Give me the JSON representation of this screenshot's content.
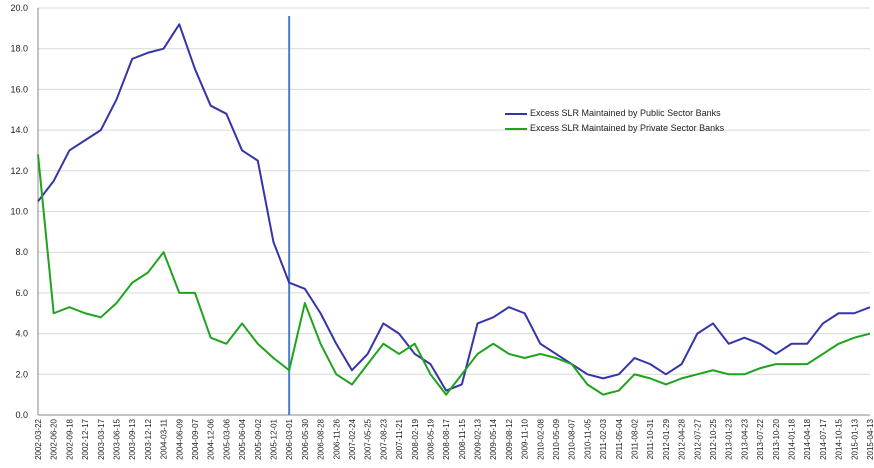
{
  "chart_data": {
    "type": "line",
    "categories": [
      "2002-03-22",
      "2002-06-20",
      "2002-09-18",
      "2002-12-17",
      "2003-03-17",
      "2003-06-15",
      "2003-09-13",
      "2003-12-12",
      "2004-03-11",
      "2004-06-09",
      "2004-09-07",
      "2004-12-06",
      "2005-03-06",
      "2005-06-04",
      "2005-09-02",
      "2005-12-01",
      "2006-03-01",
      "2006-05-30",
      "2006-08-28",
      "2006-11-26",
      "2007-02-24",
      "2007-05-25",
      "2007-08-23",
      "2007-11-21",
      "2008-02-19",
      "2008-05-19",
      "2008-08-17",
      "2008-11-15",
      "2009-02-13",
      "2009-05-14",
      "2009-08-12",
      "2009-11-10",
      "2010-02-08",
      "2010-05-09",
      "2010-08-07",
      "2010-11-05",
      "2011-02-03",
      "2011-05-04",
      "2011-08-02",
      "2011-10-31",
      "2012-01-29",
      "2012-04-28",
      "2012-07-27",
      "2012-10-25",
      "2013-01-23",
      "2013-04-23",
      "2013-07-22",
      "2013-10-20",
      "2014-01-18",
      "2014-04-18",
      "2014-07-17",
      "2014-10-15",
      "2015-01-13",
      "2015-04-13"
    ],
    "series": [
      {
        "name": "Excess SLR Maintained by Public Sector Banks",
        "color": "#3535a8",
        "values": [
          10.5,
          11.5,
          13.0,
          13.5,
          14.0,
          15.5,
          17.5,
          17.8,
          18.0,
          19.2,
          17.0,
          15.2,
          14.8,
          13.0,
          12.5,
          8.5,
          6.5,
          6.2,
          5.0,
          3.5,
          2.2,
          3.0,
          4.5,
          4.0,
          3.0,
          2.5,
          1.2,
          1.5,
          4.5,
          4.8,
          5.3,
          5.0,
          3.5,
          3.0,
          2.5,
          2.0,
          1.8,
          2.0,
          2.8,
          2.5,
          2.0,
          2.5,
          4.0,
          4.5,
          3.5,
          3.8,
          3.5,
          3.0,
          3.5,
          3.5,
          4.5,
          5.0,
          5.0,
          5.3
        ]
      },
      {
        "name": "Excess SLR Maintained by Private Sector Banks",
        "color": "#1fa31f",
        "values": [
          12.8,
          5.0,
          5.3,
          5.0,
          4.8,
          5.5,
          6.5,
          7.0,
          8.0,
          6.0,
          6.0,
          3.8,
          3.5,
          4.5,
          3.5,
          2.8,
          2.2,
          5.5,
          3.5,
          2.0,
          1.5,
          2.5,
          3.5,
          3.0,
          3.5,
          2.0,
          1.0,
          2.0,
          3.0,
          3.5,
          3.0,
          2.8,
          3.0,
          2.8,
          2.5,
          1.5,
          1.0,
          1.2,
          2.0,
          1.8,
          1.5,
          1.8,
          2.0,
          2.2,
          2.0,
          2.0,
          2.3,
          2.5,
          2.5,
          2.5,
          3.0,
          3.5,
          3.8,
          4.0
        ]
      }
    ],
    "ylim": [
      0,
      20
    ],
    "yticks": [
      {
        "value": 0,
        "label": "0.0"
      },
      {
        "value": 2,
        "label": "2.0"
      },
      {
        "value": 4,
        "label": "4.0"
      },
      {
        "value": 6,
        "label": "6.0"
      },
      {
        "value": 8,
        "label": "8.0"
      },
      {
        "value": 10,
        "label": "10.0"
      },
      {
        "value": 12,
        "label": "12.0"
      },
      {
        "value": 14,
        "label": "14.0"
      },
      {
        "value": 16,
        "label": "16.0"
      },
      {
        "value": 18,
        "label": "18.0"
      },
      {
        "value": 20,
        "label": "20.0"
      }
    ],
    "grid": true,
    "vertical_line": {
      "at": "2006-03-01",
      "color": "#4a7cc8"
    }
  }
}
